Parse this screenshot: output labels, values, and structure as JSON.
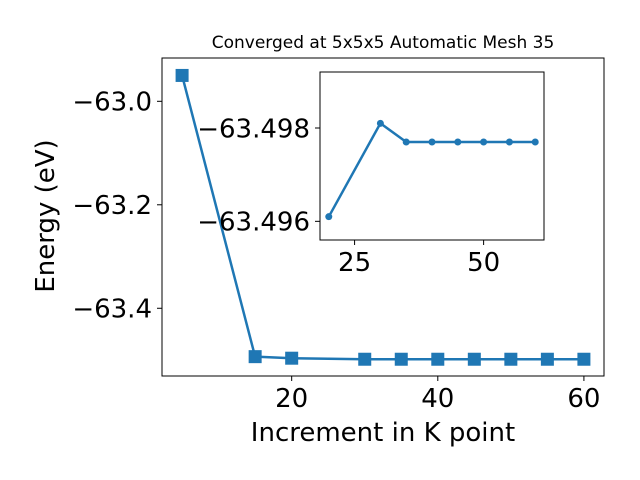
{
  "chart_data": [
    {
      "type": "line",
      "title": "Converged at 5x5x5 Automatic Mesh 35",
      "xlabel": "Increment in K point",
      "ylabel": "Energy (eV)",
      "xlim": [
        2.25,
        62.75
      ],
      "ylim": [
        -63.5309,
        -62.9163
      ],
      "x_ticks": [
        20,
        40,
        60
      ],
      "y_ticks": [
        -63.0,
        -63.2,
        -63.4
      ],
      "x_tick_labels": [
        "20",
        "40",
        "60"
      ],
      "y_tick_labels": [
        "−63.0",
        "−63.2",
        "−63.4"
      ],
      "grid": false,
      "marker": "square",
      "color": "#1f77b4",
      "series": [
        {
          "x": [
            5,
            15,
            20,
            30,
            35,
            40,
            45,
            50,
            55,
            60
          ],
          "y": [
            -62.95,
            -63.4935,
            -63.4965,
            -63.4985,
            -63.4985,
            -63.4985,
            -63.4985,
            -63.4985,
            -63.4985,
            -63.4985
          ]
        }
      ]
    },
    {
      "type": "line",
      "title": "",
      "xlabel": "",
      "ylabel": "",
      "xlim": [
        18.3,
        61.7
      ],
      "ylim": [
        -63.4956,
        -63.4992
      ],
      "x_ticks": [
        25,
        50
      ],
      "y_ticks": [
        -63.498,
        -63.496
      ],
      "x_tick_labels": [
        "25",
        "50"
      ],
      "y_tick_labels": [
        "−63.498",
        "−63.496"
      ],
      "grid": false,
      "marker": "circle",
      "color": "#1f77b4",
      "series": [
        {
          "x": [
            20,
            30,
            35,
            40,
            45,
            50,
            55,
            60
          ],
          "y": [
            -63.4961,
            -63.4981,
            -63.4977,
            -63.4977,
            -63.4977,
            -63.4977,
            -63.4977,
            -63.4977
          ]
        }
      ]
    }
  ]
}
